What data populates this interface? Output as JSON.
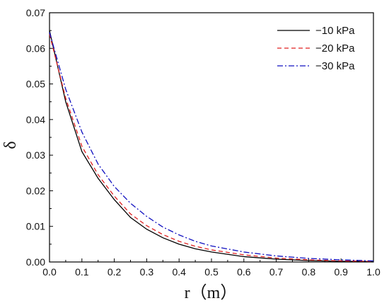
{
  "chart_data": {
    "type": "line",
    "title": "",
    "xlabel": "r（m）",
    "ylabel": "δ",
    "xlim": [
      0.0,
      1.0
    ],
    "ylim": [
      0.0,
      0.07
    ],
    "x_ticks": [
      "0.0",
      "0.1",
      "0.2",
      "0.3",
      "0.4",
      "0.5",
      "0.6",
      "0.7",
      "0.8",
      "0.9",
      "1.0"
    ],
    "y_ticks": [
      "0.00",
      "0.01",
      "0.02",
      "0.03",
      "0.04",
      "0.05",
      "0.06",
      "0.07"
    ],
    "grid": false,
    "legend_position": "top-right",
    "series": [
      {
        "name": "−10 kPa",
        "color": "#000000",
        "dash": "solid",
        "x": [
          0.0,
          0.05,
          0.1,
          0.15,
          0.2,
          0.25,
          0.3,
          0.35,
          0.4,
          0.45,
          0.5,
          0.6,
          0.7,
          0.8,
          0.9,
          1.0
        ],
        "y": [
          0.065,
          0.045,
          0.031,
          0.0235,
          0.0175,
          0.0125,
          0.0092,
          0.0068,
          0.005,
          0.0037,
          0.0028,
          0.0015,
          0.0008,
          0.0004,
          0.0002,
          0.0001
        ]
      },
      {
        "name": "−20 kPa",
        "color": "#e02020",
        "dash": "dashed",
        "x": [
          0.0,
          0.05,
          0.1,
          0.15,
          0.2,
          0.25,
          0.3,
          0.35,
          0.4,
          0.45,
          0.5,
          0.6,
          0.7,
          0.8,
          0.9,
          1.0
        ],
        "y": [
          0.064,
          0.046,
          0.0325,
          0.0245,
          0.0185,
          0.0135,
          0.0102,
          0.0077,
          0.0058,
          0.0044,
          0.0034,
          0.002,
          0.0011,
          0.0006,
          0.0003,
          0.0002
        ]
      },
      {
        "name": "−30 kPa",
        "color": "#1010c0",
        "dash": "dashdot",
        "x": [
          0.0,
          0.05,
          0.1,
          0.15,
          0.2,
          0.25,
          0.3,
          0.35,
          0.4,
          0.45,
          0.5,
          0.6,
          0.7,
          0.8,
          0.9,
          1.0
        ],
        "y": [
          0.0645,
          0.0485,
          0.0365,
          0.0275,
          0.0212,
          0.0165,
          0.0128,
          0.0098,
          0.0076,
          0.0058,
          0.0045,
          0.0028,
          0.0017,
          0.001,
          0.0006,
          0.0003
        ]
      }
    ]
  }
}
